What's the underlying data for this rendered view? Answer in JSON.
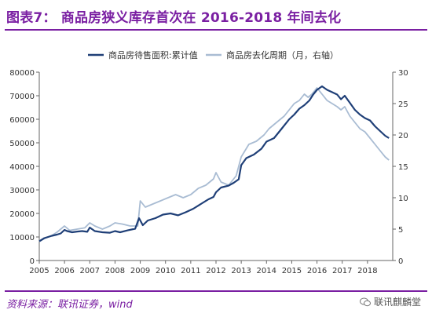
{
  "header": {
    "title": "图表7：    商品房狭义库存首次在 2016-2018 年间去化"
  },
  "footer": {
    "source": "资料来源：联讯证券，wind",
    "watermark": "联讯麒麟堂"
  },
  "colors": {
    "brand": "#7a1fa2",
    "series_dark": "#1f3f77",
    "series_light": "#a9bcd3"
  },
  "chart_data": {
    "type": "line",
    "title": "",
    "xlabel": "",
    "ylabel": "",
    "x_ticks": [
      "2005",
      "2006",
      "2007",
      "2008",
      "2009",
      "2010",
      "2011",
      "2012",
      "2013",
      "2014",
      "2015",
      "2016",
      "2017",
      "2018"
    ],
    "xlim": [
      2005,
      2019
    ],
    "ylim_left": [
      0,
      80000
    ],
    "ylim_right": [
      0,
      30
    ],
    "y_ticks_left": [
      "0",
      "10000",
      "20000",
      "30000",
      "40000",
      "50000",
      "60000",
      "70000",
      "80000"
    ],
    "y_ticks_right": [
      "0",
      "5",
      "10",
      "15",
      "20",
      "25",
      "30"
    ],
    "legend": "top",
    "series": [
      {
        "name": "商品房待售面积:累计值",
        "axis": "left",
        "color": "#1f3f77",
        "x": [
          2005.0,
          2005.2,
          2005.5,
          2005.7,
          2005.85,
          2006.0,
          2006.1,
          2006.3,
          2006.5,
          2006.7,
          2006.9,
          2007.0,
          2007.2,
          2007.5,
          2007.8,
          2008.0,
          2008.2,
          2008.5,
          2008.8,
          2008.95,
          2009.1,
          2009.3,
          2009.6,
          2009.9,
          2010.2,
          2010.5,
          2010.8,
          2011.1,
          2011.4,
          2011.7,
          2011.9,
          2012.0,
          2012.2,
          2012.5,
          2012.7,
          2012.9,
          2013.0,
          2013.2,
          2013.5,
          2013.8,
          2014.0,
          2014.3,
          2014.6,
          2014.9,
          2015.1,
          2015.3,
          2015.5,
          2015.7,
          2015.85,
          2016.0,
          2016.2,
          2016.4,
          2016.6,
          2016.8,
          2016.95,
          2017.1,
          2017.3,
          2017.5,
          2017.7,
          2017.9,
          2018.1,
          2018.3,
          2018.5,
          2018.7,
          2018.85
        ],
        "values": [
          8200,
          9500,
          10500,
          11000,
          11500,
          13000,
          12500,
          12000,
          12300,
          12500,
          12200,
          14000,
          12500,
          12000,
          11800,
          12500,
          12000,
          12800,
          13500,
          18000,
          15000,
          17000,
          18000,
          19500,
          20000,
          19200,
          20500,
          22000,
          24000,
          26000,
          27000,
          29000,
          31000,
          31800,
          33000,
          34500,
          40500,
          43500,
          45000,
          47500,
          50500,
          52000,
          56000,
          60000,
          62000,
          64500,
          66000,
          68000,
          70500,
          72500,
          74000,
          72500,
          71500,
          70500,
          68500,
          70000,
          67000,
          64000,
          62000,
          60500,
          59500,
          57000,
          55000,
          53000,
          52000
        ]
      },
      {
        "name": "商品房去化周期（月，右轴）",
        "axis": "right",
        "color": "#a9bcd3",
        "x": [
          2005.0,
          2005.2,
          2005.5,
          2005.7,
          2005.85,
          2006.0,
          2006.2,
          2006.5,
          2006.8,
          2007.0,
          2007.2,
          2007.5,
          2007.8,
          2008.0,
          2008.3,
          2008.6,
          2008.9,
          2009.0,
          2009.2,
          2009.5,
          2009.8,
          2010.1,
          2010.4,
          2010.7,
          2011.0,
          2011.3,
          2011.6,
          2011.9,
          2012.0,
          2012.2,
          2012.5,
          2012.8,
          2013.0,
          2013.3,
          2013.6,
          2013.9,
          2014.1,
          2014.4,
          2014.7,
          2014.9,
          2015.1,
          2015.3,
          2015.5,
          2015.65,
          2015.8,
          2016.0,
          2016.2,
          2016.4,
          2016.6,
          2016.8,
          2016.95,
          2017.1,
          2017.3,
          2017.5,
          2017.7,
          2017.9,
          2018.1,
          2018.3,
          2018.5,
          2018.7,
          2018.85
        ],
        "values": [
          3.0,
          3.5,
          4.0,
          4.5,
          5.0,
          5.5,
          4.8,
          5.0,
          5.2,
          6.0,
          5.5,
          5.0,
          5.5,
          6.0,
          5.8,
          5.5,
          5.5,
          9.5,
          8.5,
          9.0,
          9.5,
          10.0,
          10.5,
          10.0,
          10.5,
          11.5,
          12.0,
          13.0,
          14.0,
          12.5,
          12.0,
          13.5,
          16.5,
          18.5,
          19.0,
          20.0,
          21.0,
          22.0,
          23.0,
          24.0,
          25.0,
          25.5,
          26.5,
          26.0,
          26.5,
          27.5,
          26.5,
          25.5,
          25.0,
          24.5,
          24.0,
          24.5,
          23.0,
          22.0,
          21.0,
          20.5,
          19.5,
          18.5,
          17.5,
          16.5,
          16.0
        ]
      }
    ]
  }
}
